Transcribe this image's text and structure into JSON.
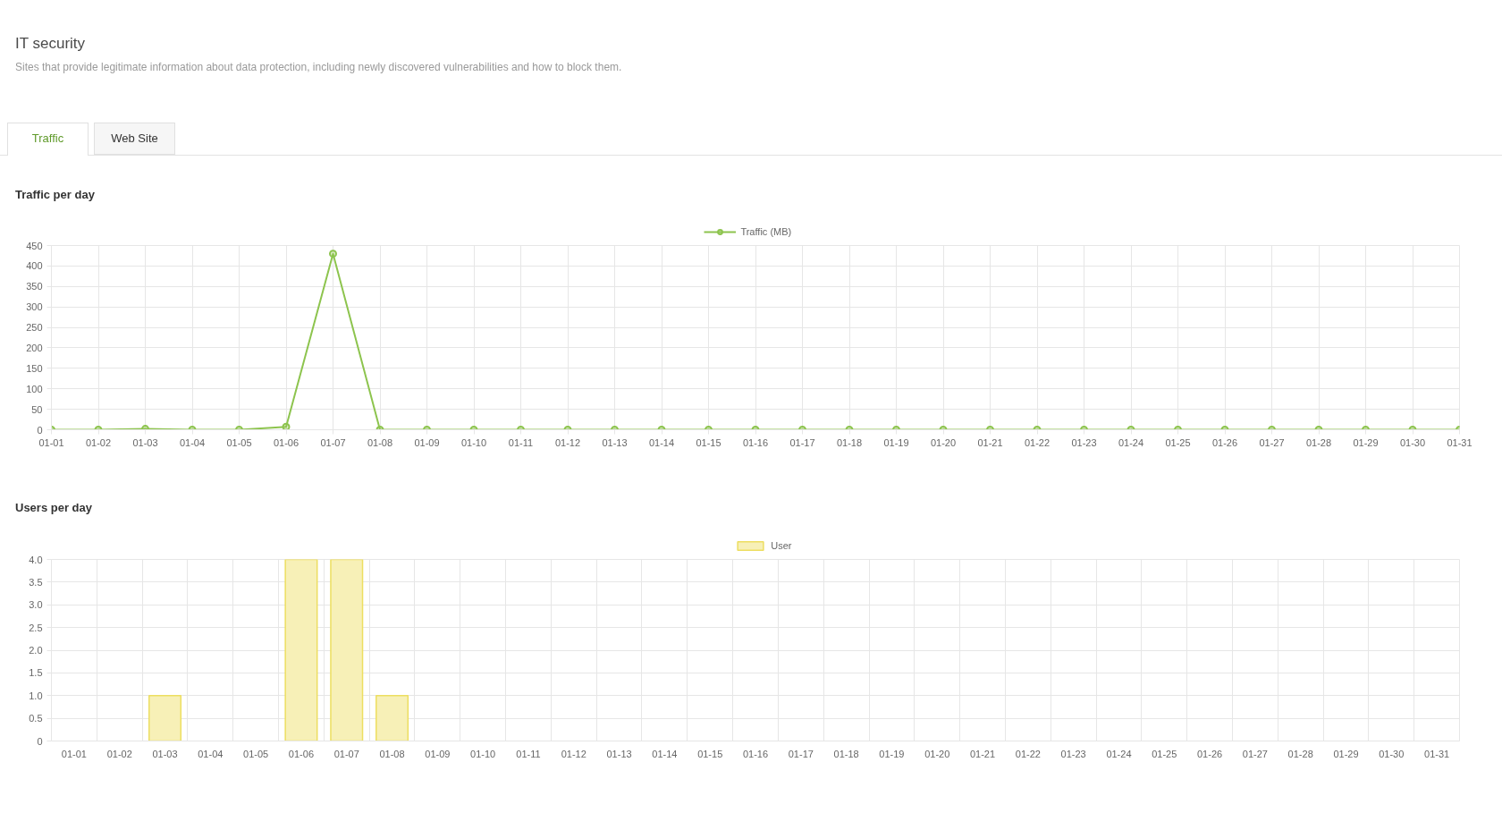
{
  "chart_data": [
    {
      "type": "other",
      "title": "IT security",
      "subtitle": "Sites that provide legitimate information about data protection, including newly discovered vulnerabilities and how to block them.",
      "annotations": [
        "Traffic",
        "Web Site"
      ]
    },
    {
      "type": "line",
      "title": "Traffic per day",
      "categories": [
        "01-01",
        "01-02",
        "01-03",
        "01-04",
        "01-05",
        "01-06",
        "01-07",
        "01-08",
        "01-09",
        "01-10",
        "01-11",
        "01-12",
        "01-13",
        "01-14",
        "01-15",
        "01-16",
        "01-17",
        "01-18",
        "01-19",
        "01-20",
        "01-21",
        "01-22",
        "01-23",
        "01-24",
        "01-25",
        "01-26",
        "01-27",
        "01-28",
        "01-29",
        "01-30",
        "01-31"
      ],
      "series": [
        {
          "name": "Traffic (MB)",
          "color": "#8dc44e",
          "values": [
            0,
            0,
            2,
            0,
            0,
            7,
            430,
            0,
            0,
            0,
            0,
            0,
            0,
            0,
            0,
            0,
            0,
            0,
            0,
            0,
            0,
            0,
            0,
            0,
            0,
            0,
            0,
            0,
            0,
            0,
            0
          ]
        }
      ],
      "ylim": [
        0,
        450
      ],
      "yticks": [
        0,
        50,
        100,
        150,
        200,
        250,
        300,
        350,
        400,
        450
      ],
      "grid": true,
      "legend": "top",
      "marker": "circle"
    },
    {
      "type": "bar",
      "title": "Users per day",
      "categories": [
        "01-01",
        "01-02",
        "01-03",
        "01-04",
        "01-05",
        "01-06",
        "01-07",
        "01-08",
        "01-09",
        "01-10",
        "01-11",
        "01-12",
        "01-13",
        "01-14",
        "01-15",
        "01-16",
        "01-17",
        "01-18",
        "01-19",
        "01-20",
        "01-21",
        "01-22",
        "01-23",
        "01-24",
        "01-25",
        "01-26",
        "01-27",
        "01-28",
        "01-29",
        "01-30",
        "01-31"
      ],
      "series": [
        {
          "name": "User",
          "color": "#f7f0b7",
          "values": [
            0,
            0,
            1,
            0,
            0,
            4,
            4,
            1,
            0,
            0,
            0,
            0,
            0,
            0,
            0,
            0,
            0,
            0,
            0,
            0,
            0,
            0,
            0,
            0,
            0,
            0,
            0,
            0,
            0,
            0,
            0
          ]
        }
      ],
      "ylim": [
        0,
        4
      ],
      "yticks": [
        0,
        0.5,
        {
          "value": 1,
          "label": "1.0"
        },
        1.5,
        {
          "value": 2,
          "label": "2.0"
        },
        2.5,
        {
          "value": 3,
          "label": "3.0"
        },
        3.5,
        {
          "value": 4,
          "label": "4.0"
        }
      ],
      "grid": true,
      "legend": "top"
    }
  ]
}
